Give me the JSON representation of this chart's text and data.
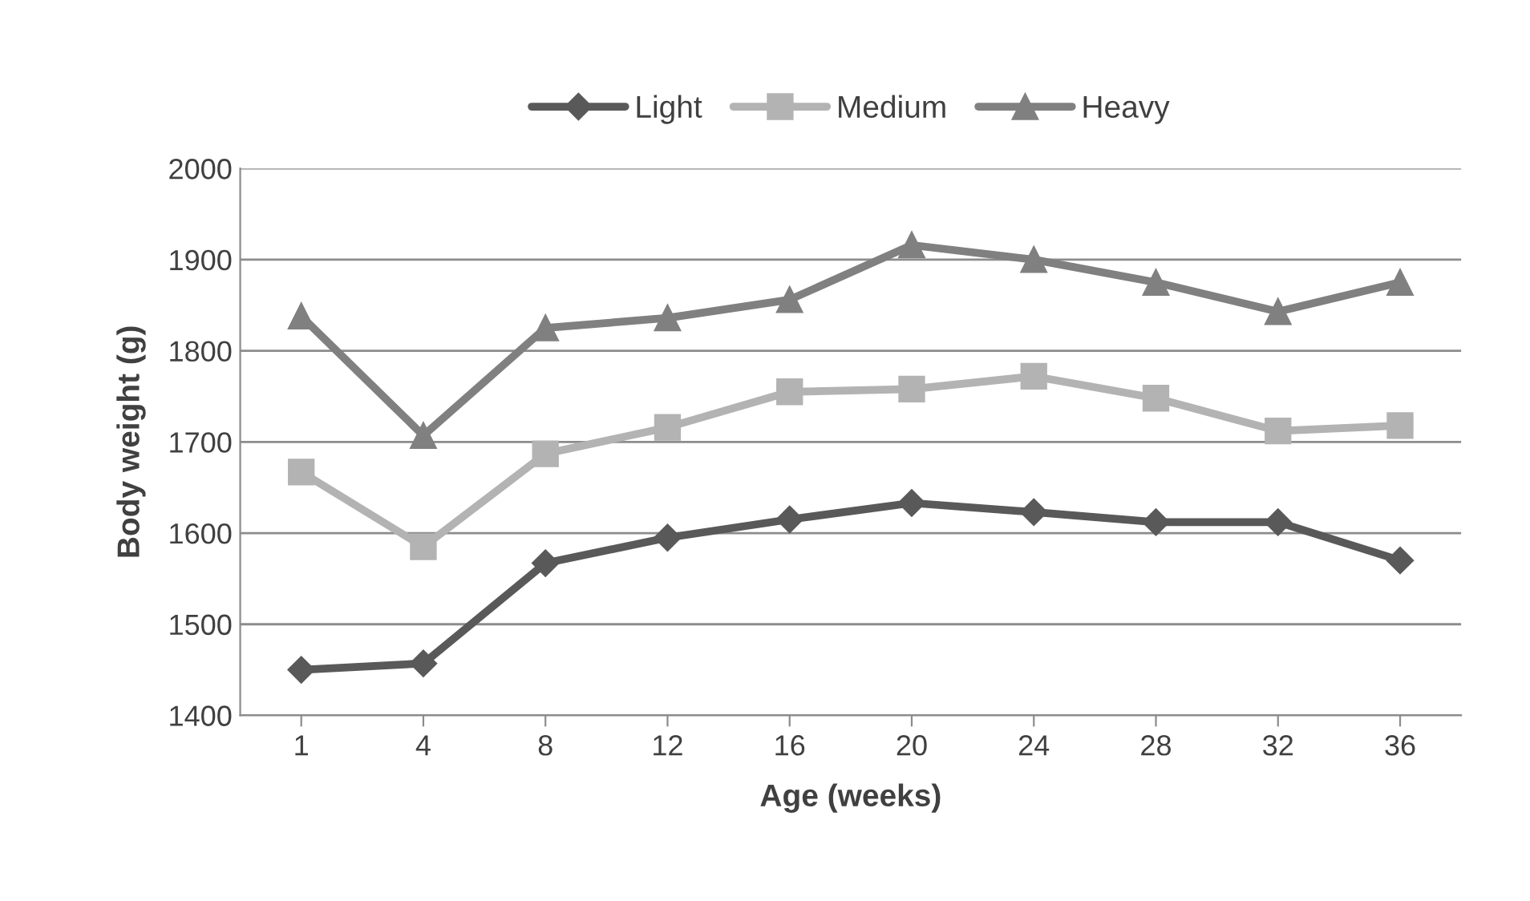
{
  "chart_data": {
    "type": "line",
    "xlabel": "Age (weeks)",
    "ylabel": "Body weight (g)",
    "categories": [
      "1",
      "4",
      "8",
      "12",
      "16",
      "20",
      "24",
      "28",
      "32",
      "36"
    ],
    "series": [
      {
        "name": "Light",
        "color": "#595959",
        "marker": "diamond",
        "values": [
          1450,
          1457,
          1567,
          1595,
          1615,
          1633,
          1623,
          1612,
          1612,
          1570
        ]
      },
      {
        "name": "Medium",
        "color": "#b3b3b3",
        "marker": "square",
        "values": [
          1667,
          1585,
          1687,
          1716,
          1755,
          1758,
          1772,
          1748,
          1712,
          1718
        ]
      },
      {
        "name": "Heavy",
        "color": "#808080",
        "marker": "triangle",
        "values": [
          1838,
          1707,
          1825,
          1836,
          1856,
          1916,
          1900,
          1875,
          1843,
          1875
        ]
      }
    ],
    "ylim": [
      1400,
      2000
    ],
    "yticks": [
      1400,
      1500,
      1600,
      1700,
      1800,
      1900,
      2000
    ],
    "grid": "y",
    "legend": "top",
    "line_style": "solid"
  }
}
